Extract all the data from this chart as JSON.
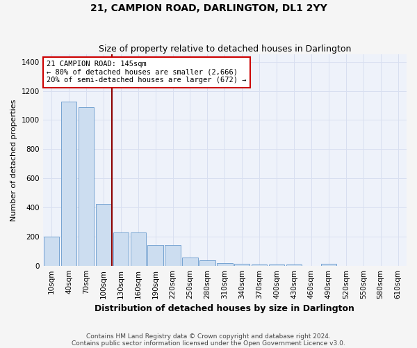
{
  "title": "21, CAMPION ROAD, DARLINGTON, DL1 2YY",
  "subtitle": "Size of property relative to detached houses in Darlington",
  "xlabel": "Distribution of detached houses by size in Darlington",
  "ylabel": "Number of detached properties",
  "bar_color": "#ccddf0",
  "bar_edge_color": "#6699cc",
  "background_color": "#eef2fa",
  "grid_color": "#d8dff0",
  "categories": [
    "10sqm",
    "40sqm",
    "70sqm",
    "100sqm",
    "130sqm",
    "160sqm",
    "190sqm",
    "220sqm",
    "250sqm",
    "280sqm",
    "310sqm",
    "340sqm",
    "370sqm",
    "400sqm",
    "430sqm",
    "460sqm",
    "490sqm",
    "520sqm",
    "550sqm",
    "580sqm",
    "610sqm"
  ],
  "values": [
    200,
    1125,
    1090,
    425,
    230,
    230,
    140,
    140,
    55,
    35,
    20,
    15,
    8,
    8,
    8,
    0,
    12,
    0,
    0,
    0,
    0
  ],
  "vline_x_index": 3.5,
  "vline_color": "#8b0000",
  "annotation_text": "21 CAMPION ROAD: 145sqm\n← 80% of detached houses are smaller (2,666)\n20% of semi-detached houses are larger (672) →",
  "annotation_box_color": "#ffffff",
  "annotation_box_edge": "#cc0000",
  "ylim": [
    0,
    1450
  ],
  "yticks": [
    0,
    200,
    400,
    600,
    800,
    1000,
    1200,
    1400
  ],
  "footnote1": "Contains HM Land Registry data © Crown copyright and database right 2024.",
  "footnote2": "Contains public sector information licensed under the Open Government Licence v3.0.",
  "fig_bg": "#f5f5f5",
  "title_fontsize": 10,
  "subtitle_fontsize": 9,
  "xlabel_fontsize": 9,
  "ylabel_fontsize": 8,
  "tick_fontsize": 7.5,
  "annot_fontsize": 7.5,
  "footnote_fontsize": 6.5
}
